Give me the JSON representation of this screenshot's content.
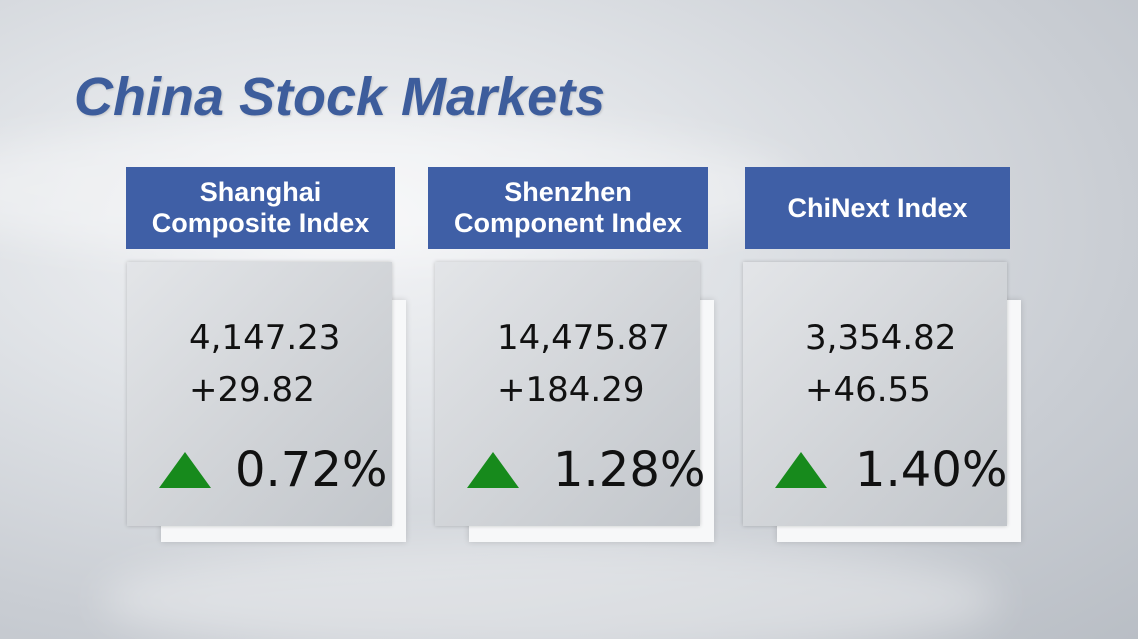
{
  "header": {
    "title": "China Stock Markets"
  },
  "cards": [
    {
      "name": "Shanghai Composite Index",
      "value": "4,147.23",
      "change": "+29.82",
      "percent": "0.72%"
    },
    {
      "name": "Shenzhen Component Index",
      "value": "14,475.87",
      "change": "+184.29",
      "percent": "1.28%"
    },
    {
      "name": "ChiNext Index",
      "value": "3,354.82",
      "change": "+46.55",
      "percent": "1.40%"
    }
  ]
}
